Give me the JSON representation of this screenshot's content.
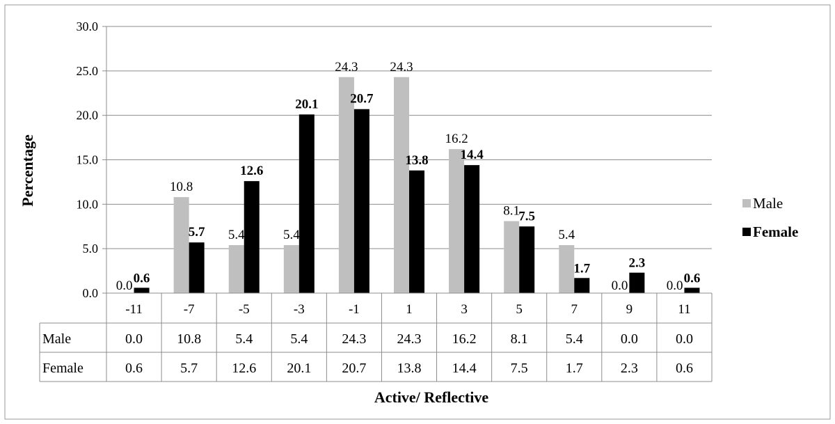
{
  "chart_data": {
    "type": "bar",
    "xlabel": "Active/ Reflective",
    "ylabel": "Percentage",
    "ylim": [
      0,
      30
    ],
    "yticks": [
      "0.0",
      "5.0",
      "10.0",
      "15.0",
      "20.0",
      "25.0",
      "30.0"
    ],
    "grid": true,
    "legend_position": "right",
    "categories": [
      "-11",
      "-7",
      "-5",
      "-3",
      "-1",
      "1",
      "3",
      "5",
      "7",
      "9",
      "11"
    ],
    "series": [
      {
        "name": "Male",
        "color": "#bfbfbf",
        "values": [
          0.0,
          10.8,
          5.4,
          5.4,
          24.3,
          24.3,
          16.2,
          8.1,
          5.4,
          0.0,
          0.0
        ],
        "labels": [
          "0.0",
          "10.8",
          "5.4",
          "5.4",
          "24.3",
          "24.3",
          "16.2",
          "8.1",
          "5.4",
          "0.0",
          "0.0"
        ]
      },
      {
        "name": "Female",
        "color": "#000000",
        "values": [
          0.6,
          5.7,
          12.6,
          20.1,
          20.7,
          13.8,
          14.4,
          7.5,
          1.7,
          2.3,
          0.6
        ],
        "labels": [
          "0.6",
          "5.7",
          "12.6",
          "20.1",
          "20.7",
          "13.8",
          "14.4",
          "7.5",
          "1.7",
          "2.3",
          "0.6"
        ]
      }
    ]
  }
}
